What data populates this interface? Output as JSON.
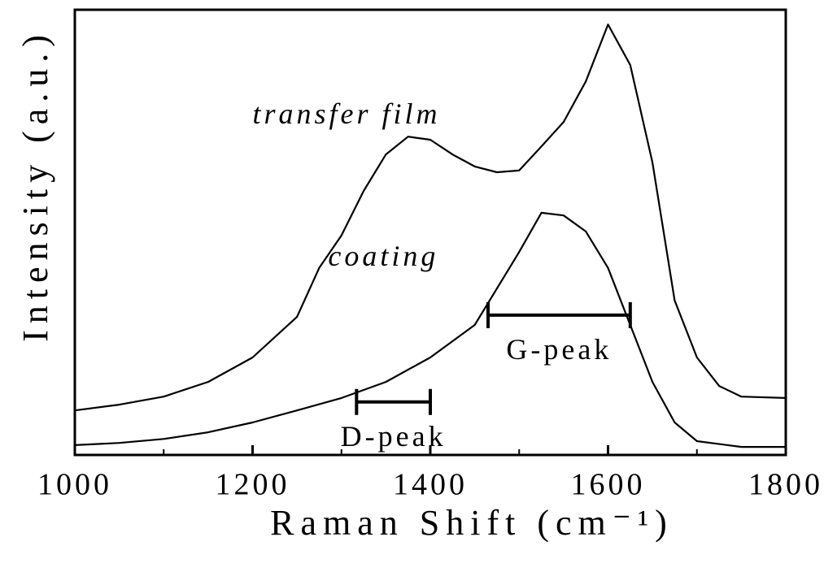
{
  "chart_data": {
    "type": "line",
    "xlabel": "Raman Shift (cm⁻¹)",
    "ylabel": "Intensity (a.u.)",
    "xlim": [
      1000,
      1800
    ],
    "xticks": [
      1000,
      1200,
      1400,
      1600,
      1800
    ],
    "xminorticks": [
      1100,
      1300,
      1500,
      1700
    ],
    "ylim": [
      0,
      100
    ],
    "series": [
      {
        "name": "transfer film",
        "color": "#000000",
        "x": [
          1000,
          1050,
          1100,
          1150,
          1200,
          1250,
          1275,
          1300,
          1325,
          1350,
          1375,
          1400,
          1425,
          1450,
          1475,
          1500,
          1525,
          1550,
          1575,
          1600,
          1625,
          1650,
          1675,
          1700,
          1725,
          1750,
          1800
        ],
        "values": [
          10.0,
          11.3,
          13.1,
          16.4,
          21.9,
          31.0,
          42.0,
          49.3,
          59.3,
          67.5,
          71.5,
          70.8,
          67.5,
          64.8,
          63.5,
          63.9,
          69.3,
          74.8,
          83.9,
          96.7,
          87.6,
          65.7,
          34.7,
          21.9,
          15.5,
          13.1,
          12.8
        ],
        "label_at": [
          1200,
          76
        ]
      },
      {
        "name": "coating",
        "color": "#000000",
        "x": [
          1000,
          1050,
          1100,
          1150,
          1200,
          1250,
          1300,
          1350,
          1400,
          1450,
          1500,
          1525,
          1550,
          1575,
          1600,
          1625,
          1650,
          1675,
          1700,
          1750,
          1800
        ],
        "values": [
          2.2,
          2.7,
          3.6,
          5.1,
          7.3,
          10.0,
          12.8,
          16.4,
          21.9,
          29.2,
          45.6,
          54.4,
          53.8,
          50.2,
          42.0,
          29.2,
          16.4,
          7.3,
          3.1,
          1.8,
          1.8
        ],
        "label_at": [
          1285,
          44
        ]
      }
    ],
    "ranges": [
      {
        "label": "G-peak",
        "x": [
          1465,
          1625
        ],
        "y": 31.4
      },
      {
        "label": "D-peak",
        "x": [
          1317,
          1400
        ],
        "y": 11.9
      }
    ]
  }
}
